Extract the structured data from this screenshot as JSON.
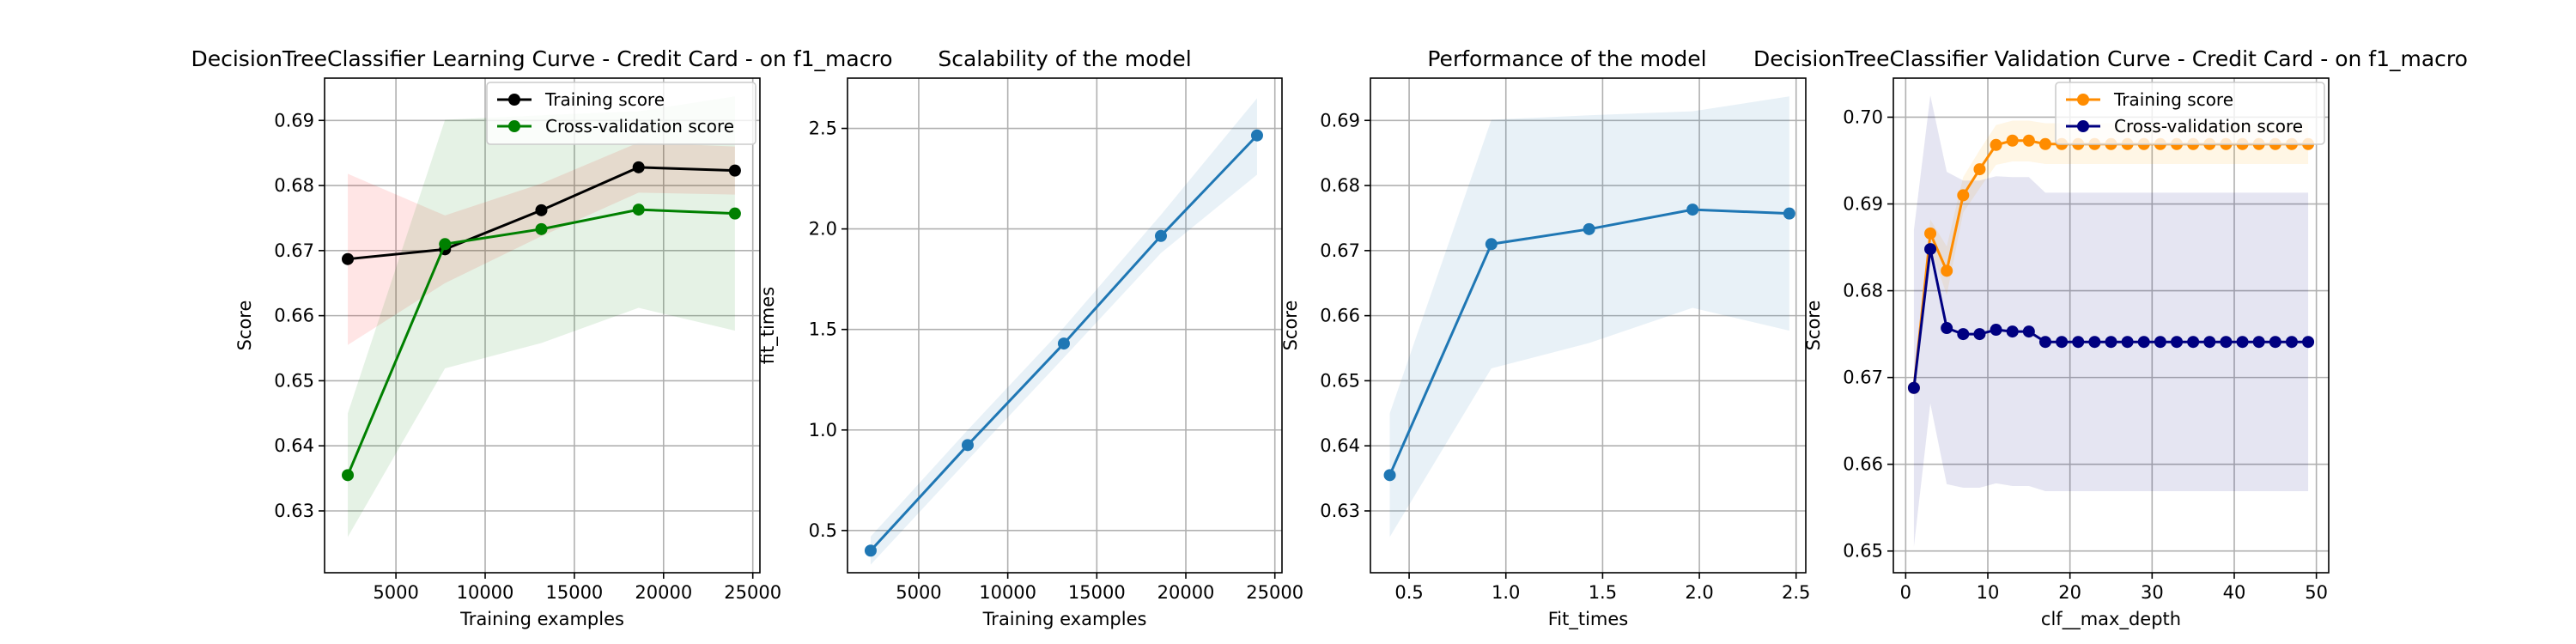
{
  "figure": {
    "background": "#ffffff"
  },
  "chart_data": [
    {
      "type": "line",
      "title": "DecisionTreeClassifier Learning Curve - Credit Card - on f1_macro",
      "xlabel": "Training examples",
      "ylabel": "Score",
      "xlim": [
        1000,
        25400
      ],
      "ylim": [
        0.6205,
        0.6965
      ],
      "xticks": [
        5000,
        10000,
        15000,
        20000,
        25000
      ],
      "yticks": [
        0.63,
        0.64,
        0.65,
        0.66,
        0.67,
        0.68,
        0.69
      ],
      "xtick_labels": [
        "5000",
        "10000",
        "15000",
        "20000",
        "25000"
      ],
      "ytick_labels": [
        "0.63",
        "0.64",
        "0.65",
        "0.66",
        "0.67",
        "0.68",
        "0.69"
      ],
      "grid": true,
      "legend": "top-right",
      "series": [
        {
          "name": "Training score",
          "color": "#000000",
          "fill": "#ff0000",
          "x": [
            2300,
            7750,
            13150,
            18600,
            24000
          ],
          "y": [
            0.6687,
            0.6702,
            0.6762,
            0.6828,
            0.6823
          ],
          "lower": [
            0.6555,
            0.665,
            0.6722,
            0.6789,
            0.6786
          ],
          "upper": [
            0.6818,
            0.6754,
            0.6803,
            0.6866,
            0.686
          ]
        },
        {
          "name": "Cross-validation score",
          "color": "#008000",
          "fill": "#008000",
          "x": [
            2300,
            7750,
            13150,
            18600,
            24000
          ],
          "y": [
            0.6355,
            0.671,
            0.6733,
            0.6763,
            0.6757
          ],
          "lower": [
            0.626,
            0.6519,
            0.6558,
            0.6612,
            0.6577
          ],
          "upper": [
            0.645,
            0.6901,
            0.6908,
            0.6914,
            0.6937
          ]
        }
      ]
    },
    {
      "type": "line",
      "title": "Scalability of the model",
      "xlabel": "Training examples",
      "ylabel": "fit_times",
      "xlim": [
        1000,
        25400
      ],
      "ylim": [
        0.29,
        2.75
      ],
      "xticks": [
        5000,
        10000,
        15000,
        20000,
        25000
      ],
      "yticks": [
        0.5,
        1.0,
        1.5,
        2.0,
        2.5
      ],
      "xtick_labels": [
        "5000",
        "10000",
        "15000",
        "20000",
        "25000"
      ],
      "ytick_labels": [
        "0.5",
        "1.0",
        "1.5",
        "2.0",
        "2.5"
      ],
      "grid": true,
      "series": [
        {
          "color": "#1f77b4",
          "fill": "#1f77b4",
          "x": [
            2300,
            7750,
            13150,
            18600,
            24000
          ],
          "y": [
            0.4,
            0.925,
            1.43,
            1.965,
            2.465
          ],
          "lower": [
            0.33,
            0.85,
            1.36,
            1.88,
            2.27
          ],
          "upper": [
            0.47,
            1.0,
            1.51,
            2.07,
            2.65
          ]
        }
      ]
    },
    {
      "type": "line",
      "title": "Performance of the model",
      "xlabel": "Fit_times",
      "ylabel": "Score",
      "xlim": [
        0.3,
        2.55
      ],
      "ylim": [
        0.6205,
        0.6965
      ],
      "xticks": [
        0.5,
        1.0,
        1.5,
        2.0,
        2.5
      ],
      "yticks": [
        0.63,
        0.64,
        0.65,
        0.66,
        0.67,
        0.68,
        0.69
      ],
      "xtick_labels": [
        "0.5",
        "1.0",
        "1.5",
        "2.0",
        "2.5"
      ],
      "ytick_labels": [
        "0.63",
        "0.64",
        "0.65",
        "0.66",
        "0.67",
        "0.68",
        "0.69"
      ],
      "grid": true,
      "series": [
        {
          "color": "#1f77b4",
          "fill": "#1f77b4",
          "x": [
            0.4,
            0.925,
            1.43,
            1.965,
            2.465
          ],
          "y": [
            0.6355,
            0.671,
            0.6733,
            0.6763,
            0.6757
          ],
          "lower": [
            0.626,
            0.6519,
            0.6558,
            0.6612,
            0.6577
          ],
          "upper": [
            0.645,
            0.6901,
            0.6908,
            0.6914,
            0.6937
          ]
        }
      ]
    },
    {
      "type": "line",
      "title": "DecisionTreeClassifier Validation Curve - Credit Card - on f1_macro",
      "xlabel": "clf__max_depth",
      "ylabel": "Score",
      "xlim": [
        -1.5,
        51.5
      ],
      "ylim": [
        0.6475,
        0.7045
      ],
      "xticks": [
        0,
        10,
        20,
        30,
        40,
        50
      ],
      "yticks": [
        0.65,
        0.66,
        0.67,
        0.68,
        0.69,
        0.7
      ],
      "xtick_labels": [
        "0",
        "10",
        "20",
        "30",
        "40",
        "50"
      ],
      "ytick_labels": [
        "0.65",
        "0.66",
        "0.67",
        "0.68",
        "0.69",
        "0.70"
      ],
      "grid": true,
      "legend": "top-right",
      "series": [
        {
          "name": "Training score",
          "color": "#ff8c00",
          "fill": "#ffa500",
          "x": [
            1,
            3,
            5,
            7,
            9,
            11,
            13,
            15,
            17,
            19,
            21,
            23,
            25,
            27,
            29,
            31,
            33,
            35,
            37,
            39,
            41,
            43,
            45,
            47,
            49
          ],
          "y": [
            0.6688,
            0.6866,
            0.6823,
            0.691,
            0.694,
            0.6968,
            0.6973,
            0.6973,
            0.6969,
            0.6969,
            0.6969,
            0.6969,
            0.6969,
            0.6969,
            0.6969,
            0.6969,
            0.6969,
            0.6969,
            0.6969,
            0.6969,
            0.6969,
            0.6969,
            0.6969,
            0.6969,
            0.6969
          ],
          "lower": [
            0.6684,
            0.685,
            0.6795,
            0.689,
            0.6918,
            0.6945,
            0.6949,
            0.6949,
            0.6946,
            0.6946,
            0.6946,
            0.6946,
            0.6946,
            0.6946,
            0.6946,
            0.6946,
            0.6946,
            0.6946,
            0.6946,
            0.6946,
            0.6946,
            0.6946,
            0.6946,
            0.6946,
            0.6946
          ],
          "upper": [
            0.6692,
            0.6882,
            0.6851,
            0.6931,
            0.6962,
            0.6991,
            0.6996,
            0.6996,
            0.6993,
            0.6993,
            0.6993,
            0.6993,
            0.6993,
            0.6993,
            0.6993,
            0.6993,
            0.6993,
            0.6993,
            0.6993,
            0.6993,
            0.6993,
            0.6993,
            0.6993,
            0.6993,
            0.6993
          ]
        },
        {
          "name": "Cross-validation score",
          "color": "#000080",
          "fill": "#000080",
          "x": [
            1,
            3,
            5,
            7,
            9,
            11,
            13,
            15,
            17,
            19,
            21,
            23,
            25,
            27,
            29,
            31,
            33,
            35,
            37,
            39,
            41,
            43,
            45,
            47,
            49
          ],
          "y": [
            0.6688,
            0.6848,
            0.6757,
            0.675,
            0.675,
            0.6755,
            0.6753,
            0.6753,
            0.6741,
            0.6741,
            0.6741,
            0.6741,
            0.6741,
            0.6741,
            0.6741,
            0.6741,
            0.6741,
            0.6741,
            0.6741,
            0.6741,
            0.6741,
            0.6741,
            0.6741,
            0.6741,
            0.6741
          ],
          "lower": [
            0.6505,
            0.667,
            0.6577,
            0.6573,
            0.6573,
            0.6578,
            0.6575,
            0.6575,
            0.6569,
            0.6569,
            0.6569,
            0.6569,
            0.6569,
            0.6569,
            0.6569,
            0.6569,
            0.6569,
            0.6569,
            0.6569,
            0.6569,
            0.6569,
            0.6569,
            0.6569,
            0.6569,
            0.6569
          ],
          "upper": [
            0.687,
            0.7025,
            0.6937,
            0.6927,
            0.6927,
            0.6932,
            0.6931,
            0.6931,
            0.6913,
            0.6913,
            0.6913,
            0.6913,
            0.6913,
            0.6913,
            0.6913,
            0.6913,
            0.6913,
            0.6913,
            0.6913,
            0.6913,
            0.6913,
            0.6913,
            0.6913,
            0.6913,
            0.6913
          ]
        }
      ]
    }
  ]
}
